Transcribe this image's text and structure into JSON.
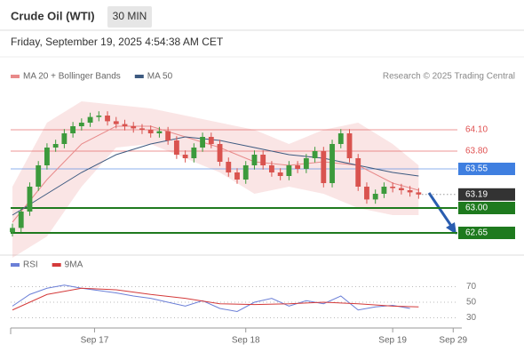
{
  "header": {
    "title": "Crude Oil (WTI)",
    "timeframe": "30 MIN",
    "date": "Friday, September 19, 2025 4:54:38 AM CET",
    "credit": "Research © 2025 Trading Central"
  },
  "chart_data": [
    {
      "type": "candlestick",
      "ohlc": [
        [
          62.66,
          62.78,
          62.6,
          62.72
        ],
        [
          62.72,
          63.01,
          62.66,
          62.95
        ],
        [
          62.95,
          63.36,
          62.89,
          63.3
        ],
        [
          63.3,
          63.66,
          63.24,
          63.6
        ],
        [
          63.6,
          63.91,
          63.54,
          63.85
        ],
        [
          63.85,
          63.96,
          63.79,
          63.9
        ],
        [
          63.9,
          64.11,
          63.84,
          64.05
        ],
        [
          64.05,
          64.21,
          63.99,
          64.15
        ],
        [
          64.15,
          64.26,
          64.09,
          64.2
        ],
        [
          64.2,
          64.34,
          64.14,
          64.28
        ],
        [
          64.28,
          64.36,
          64.22,
          64.3
        ],
        [
          64.3,
          64.36,
          64.16,
          64.22
        ],
        [
          64.22,
          64.28,
          64.12,
          64.18
        ],
        [
          64.18,
          64.24,
          64.09,
          64.15
        ],
        [
          64.15,
          64.21,
          64.06,
          64.12
        ],
        [
          64.12,
          64.18,
          64.04,
          64.1
        ],
        [
          64.1,
          64.16,
          63.99,
          64.05
        ],
        [
          64.05,
          64.14,
          63.99,
          64.08
        ],
        [
          64.08,
          64.14,
          63.89,
          63.95
        ],
        [
          63.95,
          64.01,
          63.69,
          63.75
        ],
        [
          63.75,
          63.81,
          63.64,
          63.7
        ],
        [
          63.7,
          63.91,
          63.64,
          63.85
        ],
        [
          63.85,
          64.06,
          63.79,
          64.0
        ],
        [
          64.0,
          64.06,
          63.84,
          63.9
        ],
        [
          63.9,
          63.96,
          63.59,
          63.65
        ],
        [
          63.65,
          63.71,
          63.44,
          63.5
        ],
        [
          63.5,
          63.56,
          63.34,
          63.4
        ],
        [
          63.4,
          63.66,
          63.34,
          63.6
        ],
        [
          63.6,
          63.81,
          63.54,
          63.75
        ],
        [
          63.75,
          63.81,
          63.54,
          63.6
        ],
        [
          63.6,
          63.66,
          63.44,
          63.5
        ],
        [
          63.5,
          63.56,
          63.39,
          63.45
        ],
        [
          63.45,
          63.66,
          63.39,
          63.6
        ],
        [
          63.6,
          63.66,
          63.49,
          63.55
        ],
        [
          63.55,
          63.76,
          63.49,
          63.7
        ],
        [
          63.7,
          63.86,
          63.64,
          63.8
        ],
        [
          63.8,
          63.86,
          63.29,
          63.35
        ],
        [
          63.35,
          63.96,
          63.29,
          63.9
        ],
        [
          63.9,
          64.11,
          63.84,
          64.05
        ],
        [
          64.05,
          64.11,
          63.64,
          63.7
        ],
        [
          63.7,
          63.76,
          63.24,
          63.3
        ],
        [
          63.3,
          63.36,
          63.06,
          63.12
        ],
        [
          63.12,
          63.26,
          63.06,
          63.2
        ],
        [
          63.2,
          63.36,
          63.14,
          63.3
        ],
        [
          63.3,
          63.36,
          63.22,
          63.28
        ],
        [
          63.28,
          63.34,
          63.19,
          63.25
        ],
        [
          63.25,
          63.31,
          63.16,
          63.22
        ],
        [
          63.22,
          63.28,
          63.13,
          63.19
        ]
      ],
      "up_color": "#3c9a3c",
      "down_color": "#d9534f",
      "series": [
        {
          "name": "MA 20 + Bollinger Bands",
          "color": "#e88a8a",
          "x": [
            0,
            4,
            8,
            12,
            16,
            20,
            24,
            28,
            32,
            36,
            40,
            44,
            47
          ],
          "values": [
            62.8,
            63.4,
            63.9,
            64.15,
            64.15,
            64.0,
            63.85,
            63.65,
            63.6,
            63.65,
            63.6,
            63.35,
            63.25
          ],
          "upper": [
            63.3,
            64.2,
            64.5,
            64.45,
            64.4,
            64.3,
            64.2,
            64.1,
            63.9,
            64.1,
            64.2,
            63.9,
            63.6
          ],
          "lower": [
            62.3,
            62.6,
            63.3,
            63.85,
            63.9,
            63.7,
            63.5,
            63.2,
            63.3,
            63.2,
            63.0,
            62.9,
            62.9
          ]
        },
        {
          "name": "MA 50",
          "color": "#3d5a80",
          "x": [
            0,
            4,
            8,
            12,
            16,
            20,
            24,
            28,
            32,
            36,
            40,
            44,
            47
          ],
          "values": [
            62.9,
            63.2,
            63.5,
            63.75,
            63.9,
            64.0,
            63.95,
            63.85,
            63.75,
            63.7,
            63.6,
            63.5,
            63.45
          ]
        }
      ],
      "levels": [
        {
          "value": 64.1,
          "label": "64.10",
          "color": "#e05050",
          "boxed": false,
          "line": "solid"
        },
        {
          "value": 63.8,
          "label": "63.80",
          "color": "#e05050",
          "boxed": false,
          "line": "solid"
        },
        {
          "value": 63.55,
          "label": "63.55",
          "color": "#3f7fe0",
          "boxed": true,
          "line": "solid"
        },
        {
          "value": 63.19,
          "label": "63.19",
          "color": "#333333",
          "boxed": true,
          "line": "dotted"
        },
        {
          "value": 63.0,
          "label": "63.00",
          "color": "#1e7a1e",
          "boxed": true,
          "line": "thick"
        },
        {
          "value": 62.65,
          "label": "62.65",
          "color": "#1e7a1e",
          "boxed": true,
          "line": "thick"
        }
      ],
      "ylim": [
        62.4,
        64.7
      ],
      "xlim": [
        0,
        52
      ]
    },
    {
      "type": "line",
      "series": [
        {
          "name": "RSI",
          "color": "#6b7fd7",
          "x": [
            0,
            2,
            4,
            6,
            8,
            10,
            12,
            14,
            16,
            18,
            20,
            22,
            24,
            26,
            28,
            30,
            32,
            34,
            36,
            38,
            40,
            42,
            44,
            46
          ],
          "values": [
            45,
            60,
            68,
            72,
            68,
            65,
            62,
            58,
            55,
            50,
            45,
            52,
            42,
            38,
            50,
            55,
            45,
            52,
            48,
            58,
            40,
            44,
            46,
            42
          ]
        },
        {
          "name": "9MA",
          "color": "#d43a3a",
          "x": [
            0,
            4,
            8,
            12,
            16,
            20,
            24,
            28,
            32,
            36,
            40,
            44,
            47
          ],
          "values": [
            40,
            60,
            68,
            66,
            60,
            55,
            48,
            47,
            48,
            50,
            48,
            45,
            44
          ]
        }
      ],
      "ylim": [
        10,
        90
      ],
      "yticks": [
        30,
        50,
        70
      ],
      "xlim": [
        0,
        52
      ],
      "xticks": [
        {
          "value": 9.5,
          "label": "Sep 17"
        },
        {
          "value": 27,
          "label": "Sep 18"
        },
        {
          "value": 44,
          "label": "Sep 19"
        },
        {
          "value": 51,
          "label": "Sep 29"
        }
      ]
    }
  ]
}
